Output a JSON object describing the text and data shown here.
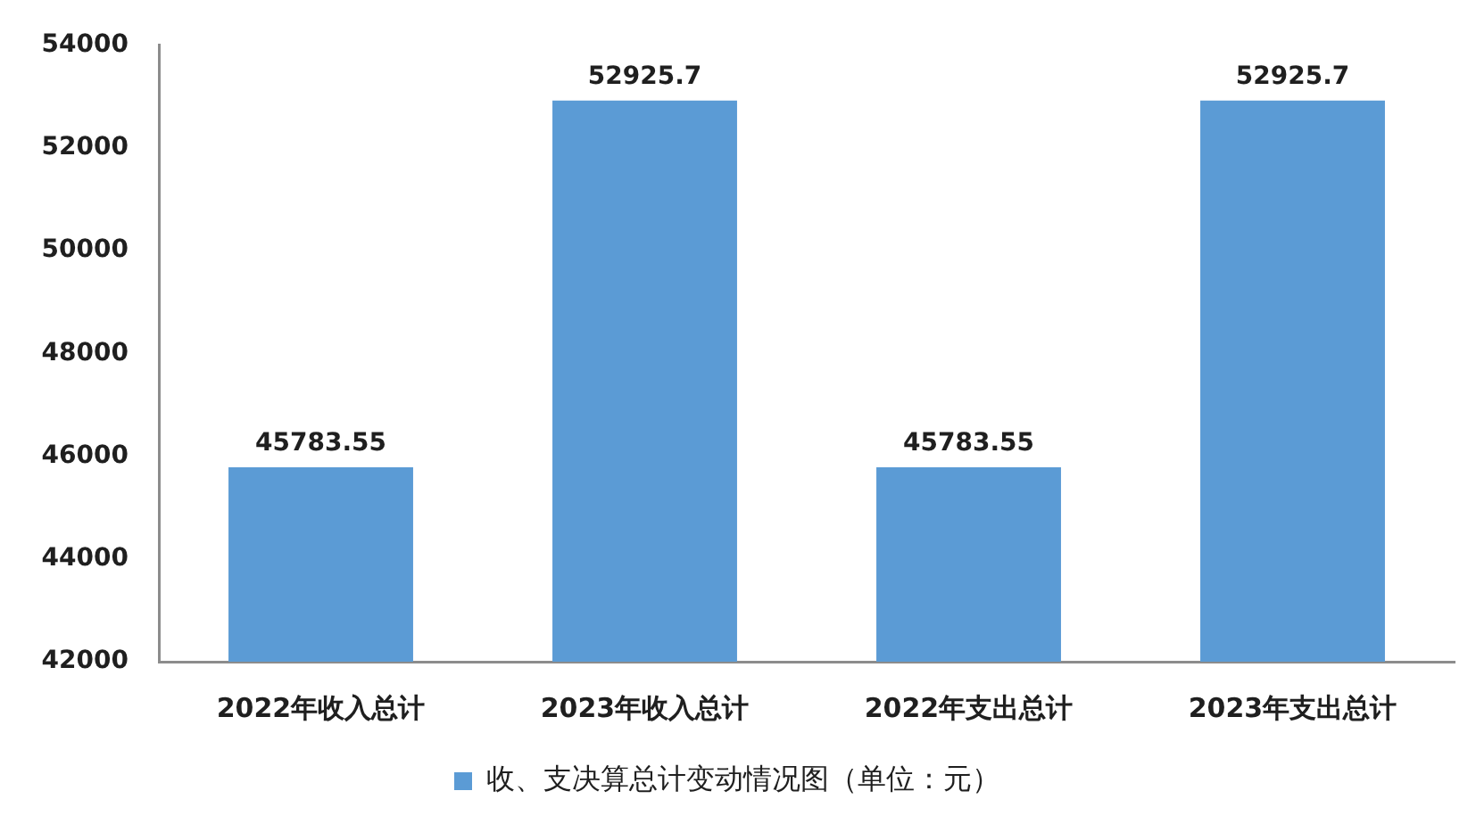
{
  "chart_data": {
    "type": "bar",
    "categories": [
      "2022年收入总计",
      "2023年收入总计",
      "2022年支出总计",
      "2023年支出总计"
    ],
    "series": [
      {
        "name": "收、支决算总计变动情况图（单位：元）",
        "color": "#5b9bd5",
        "values": [
          45783.55,
          52925.7,
          45783.55,
          52925.7
        ]
      }
    ],
    "ylim": [
      42000,
      54000
    ],
    "yticks": [
      42000,
      44000,
      46000,
      48000,
      50000,
      52000,
      54000
    ],
    "grid": false,
    "legend": "bottom",
    "data_labels": true
  }
}
